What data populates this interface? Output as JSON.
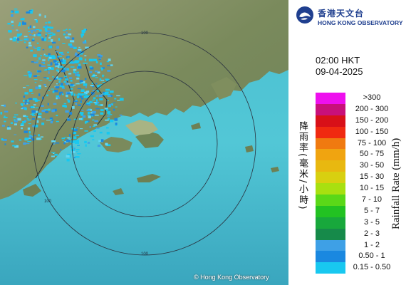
{
  "header": {
    "logo_zh": "香港天文台",
    "logo_en": "HONG KONG OBSERVATORY"
  },
  "timestamp": {
    "time": "02:00 HKT",
    "date": "09-04-2025"
  },
  "legend": {
    "title_en": "Rainfall Rate (mm/h)",
    "title_zh": "降雨率(毫米/小時)",
    "items": [
      {
        "label": ">300",
        "color": "#ee10ee"
      },
      {
        "label": "200 - 300",
        "color": "#c8107a"
      },
      {
        "label": "150 - 200",
        "color": "#d81018"
      },
      {
        "label": "100 - 150",
        "color": "#f02a10"
      },
      {
        "label": "75 - 100",
        "color": "#f07a10"
      },
      {
        "label": "50 - 75",
        "color": "#f0a410"
      },
      {
        "label": "30 - 50",
        "color": "#e8b810"
      },
      {
        "label": "15 - 30",
        "color": "#d8d010"
      },
      {
        "label": "10 - 15",
        "color": "#a8e010"
      },
      {
        "label": "7 - 10",
        "color": "#5ad818"
      },
      {
        "label": "5 - 7",
        "color": "#22c222"
      },
      {
        "label": "3 - 5",
        "color": "#18a83c"
      },
      {
        "label": "2 - 3",
        "color": "#168a4a"
      },
      {
        "label": "1 - 2",
        "color": "#3ea0e6"
      },
      {
        "label": "0.50 - 1",
        "color": "#1a88e0"
      },
      {
        "label": "0.15 - 0.50",
        "color": "#18c8f0"
      }
    ]
  },
  "map": {
    "range_ring_label": "100",
    "copyright": "© Hong Kong Observatory"
  },
  "colors": {
    "sea": "#3fb3c6",
    "land": "#7e8b62",
    "brand": "#1f3f8f"
  }
}
